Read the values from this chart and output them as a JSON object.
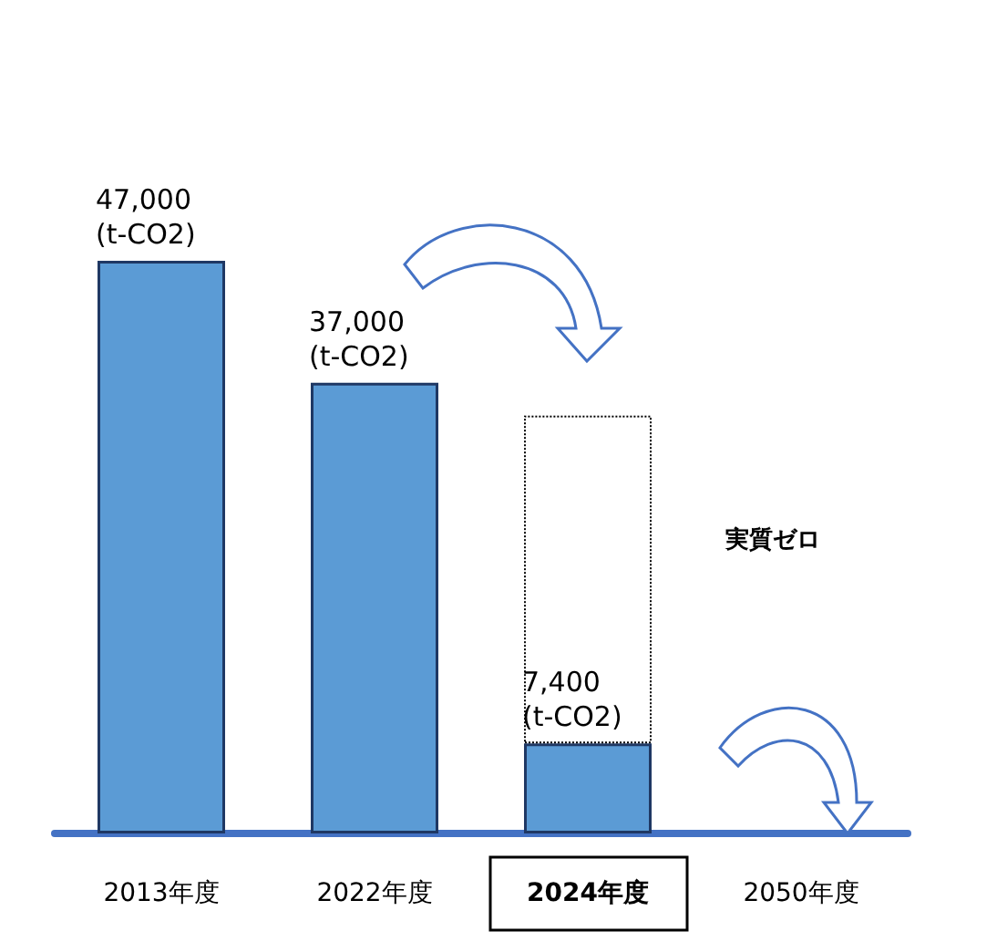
{
  "chart_data": {
    "type": "bar",
    "categories": [
      "2013年度",
      "2022年度",
      "2024年度",
      "2050年度"
    ],
    "series": [
      {
        "color": "#5b9bd5",
        "values": [
          47000,
          37000,
          7400,
          0
        ],
        "value_labels": [
          "47,000\n(t-CO2)",
          "37,000\n(t-CO2)",
          "7,400\n(t-CO2)",
          null
        ]
      },
      {
        "color": "#ffffff",
        "line_style": "dotted",
        "values": [
          null,
          null,
          26900,
          null
        ]
      }
    ],
    "stacked": true,
    "tick_labels": "x",
    "annotations": [
      "実質ゼロ"
    ]
  }
}
